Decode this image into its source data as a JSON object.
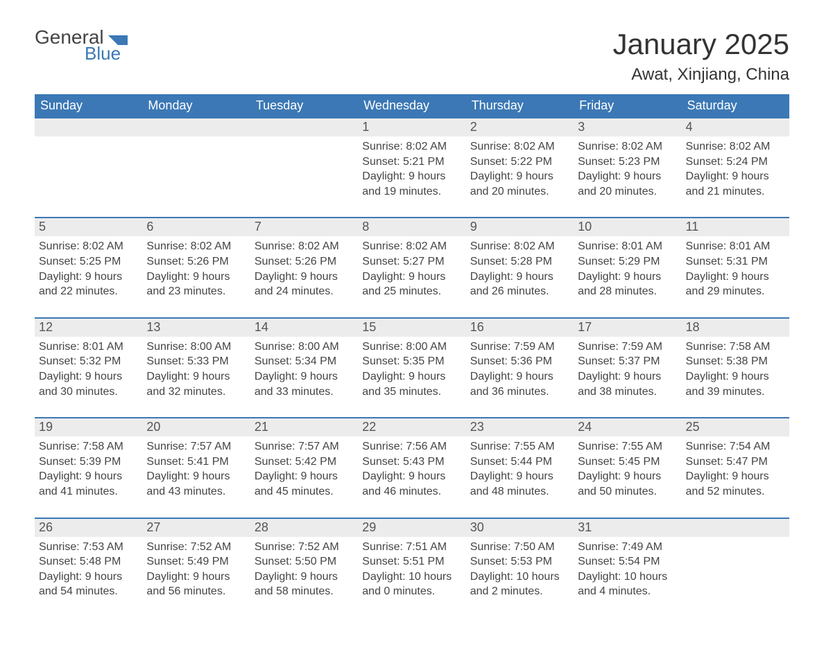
{
  "logo": {
    "line1": "General",
    "line2": "Blue"
  },
  "title": "January 2025",
  "location": "Awat, Xinjiang, China",
  "colors": {
    "header_bg": "#3b78b5",
    "header_text": "#ffffff",
    "daynum_bg": "#ececec",
    "row_border": "#3b78b5",
    "page_bg": "#ffffff",
    "body_text": "#444444"
  },
  "weekdays": [
    "Sunday",
    "Monday",
    "Tuesday",
    "Wednesday",
    "Thursday",
    "Friday",
    "Saturday"
  ],
  "labels": {
    "sunrise": "Sunrise: ",
    "sunset": "Sunset: ",
    "daylight": "Daylight: "
  },
  "weeks": [
    [
      {
        "blank": true
      },
      {
        "blank": true
      },
      {
        "blank": true
      },
      {
        "n": "1",
        "sunrise": "8:02 AM",
        "sunset": "5:21 PM",
        "daylight": "9 hours and 19 minutes."
      },
      {
        "n": "2",
        "sunrise": "8:02 AM",
        "sunset": "5:22 PM",
        "daylight": "9 hours and 20 minutes."
      },
      {
        "n": "3",
        "sunrise": "8:02 AM",
        "sunset": "5:23 PM",
        "daylight": "9 hours and 20 minutes."
      },
      {
        "n": "4",
        "sunrise": "8:02 AM",
        "sunset": "5:24 PM",
        "daylight": "9 hours and 21 minutes."
      }
    ],
    [
      {
        "n": "5",
        "sunrise": "8:02 AM",
        "sunset": "5:25 PM",
        "daylight": "9 hours and 22 minutes."
      },
      {
        "n": "6",
        "sunrise": "8:02 AM",
        "sunset": "5:26 PM",
        "daylight": "9 hours and 23 minutes."
      },
      {
        "n": "7",
        "sunrise": "8:02 AM",
        "sunset": "5:26 PM",
        "daylight": "9 hours and 24 minutes."
      },
      {
        "n": "8",
        "sunrise": "8:02 AM",
        "sunset": "5:27 PM",
        "daylight": "9 hours and 25 minutes."
      },
      {
        "n": "9",
        "sunrise": "8:02 AM",
        "sunset": "5:28 PM",
        "daylight": "9 hours and 26 minutes."
      },
      {
        "n": "10",
        "sunrise": "8:01 AM",
        "sunset": "5:29 PM",
        "daylight": "9 hours and 28 minutes."
      },
      {
        "n": "11",
        "sunrise": "8:01 AM",
        "sunset": "5:31 PM",
        "daylight": "9 hours and 29 minutes."
      }
    ],
    [
      {
        "n": "12",
        "sunrise": "8:01 AM",
        "sunset": "5:32 PM",
        "daylight": "9 hours and 30 minutes."
      },
      {
        "n": "13",
        "sunrise": "8:00 AM",
        "sunset": "5:33 PM",
        "daylight": "9 hours and 32 minutes."
      },
      {
        "n": "14",
        "sunrise": "8:00 AM",
        "sunset": "5:34 PM",
        "daylight": "9 hours and 33 minutes."
      },
      {
        "n": "15",
        "sunrise": "8:00 AM",
        "sunset": "5:35 PM",
        "daylight": "9 hours and 35 minutes."
      },
      {
        "n": "16",
        "sunrise": "7:59 AM",
        "sunset": "5:36 PM",
        "daylight": "9 hours and 36 minutes."
      },
      {
        "n": "17",
        "sunrise": "7:59 AM",
        "sunset": "5:37 PM",
        "daylight": "9 hours and 38 minutes."
      },
      {
        "n": "18",
        "sunrise": "7:58 AM",
        "sunset": "5:38 PM",
        "daylight": "9 hours and 39 minutes."
      }
    ],
    [
      {
        "n": "19",
        "sunrise": "7:58 AM",
        "sunset": "5:39 PM",
        "daylight": "9 hours and 41 minutes."
      },
      {
        "n": "20",
        "sunrise": "7:57 AM",
        "sunset": "5:41 PM",
        "daylight": "9 hours and 43 minutes."
      },
      {
        "n": "21",
        "sunrise": "7:57 AM",
        "sunset": "5:42 PM",
        "daylight": "9 hours and 45 minutes."
      },
      {
        "n": "22",
        "sunrise": "7:56 AM",
        "sunset": "5:43 PM",
        "daylight": "9 hours and 46 minutes."
      },
      {
        "n": "23",
        "sunrise": "7:55 AM",
        "sunset": "5:44 PM",
        "daylight": "9 hours and 48 minutes."
      },
      {
        "n": "24",
        "sunrise": "7:55 AM",
        "sunset": "5:45 PM",
        "daylight": "9 hours and 50 minutes."
      },
      {
        "n": "25",
        "sunrise": "7:54 AM",
        "sunset": "5:47 PM",
        "daylight": "9 hours and 52 minutes."
      }
    ],
    [
      {
        "n": "26",
        "sunrise": "7:53 AM",
        "sunset": "5:48 PM",
        "daylight": "9 hours and 54 minutes."
      },
      {
        "n": "27",
        "sunrise": "7:52 AM",
        "sunset": "5:49 PM",
        "daylight": "9 hours and 56 minutes."
      },
      {
        "n": "28",
        "sunrise": "7:52 AM",
        "sunset": "5:50 PM",
        "daylight": "9 hours and 58 minutes."
      },
      {
        "n": "29",
        "sunrise": "7:51 AM",
        "sunset": "5:51 PM",
        "daylight": "10 hours and 0 minutes."
      },
      {
        "n": "30",
        "sunrise": "7:50 AM",
        "sunset": "5:53 PM",
        "daylight": "10 hours and 2 minutes."
      },
      {
        "n": "31",
        "sunrise": "7:49 AM",
        "sunset": "5:54 PM",
        "daylight": "10 hours and 4 minutes."
      },
      {
        "blank": true
      }
    ]
  ]
}
